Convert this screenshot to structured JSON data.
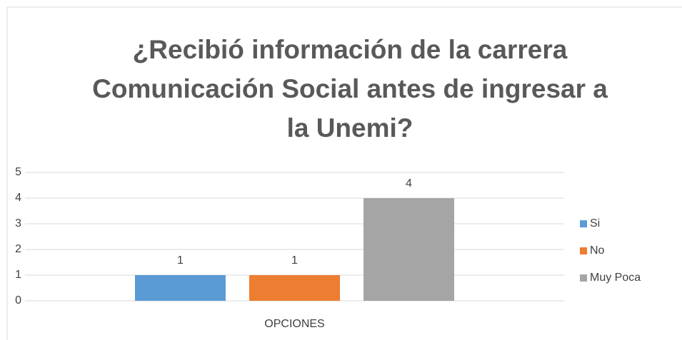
{
  "chart_data": {
    "type": "bar",
    "title": "¿Recibió información de la carrera Comunicación Social antes de ingresar a la Unemi?",
    "categories": [
      "OPCIONES"
    ],
    "series": [
      {
        "name": "Si",
        "color": "#5b9bd5",
        "values": [
          1
        ]
      },
      {
        "name": "No",
        "color": "#ed7d31",
        "values": [
          1
        ]
      },
      {
        "name": "Muy Poca",
        "color": "#a5a5a5",
        "values": [
          4
        ]
      }
    ],
    "ylim": [
      0,
      5
    ],
    "yticks": [
      0,
      1,
      2,
      3,
      4,
      5
    ],
    "grid": true,
    "legend": "right"
  }
}
